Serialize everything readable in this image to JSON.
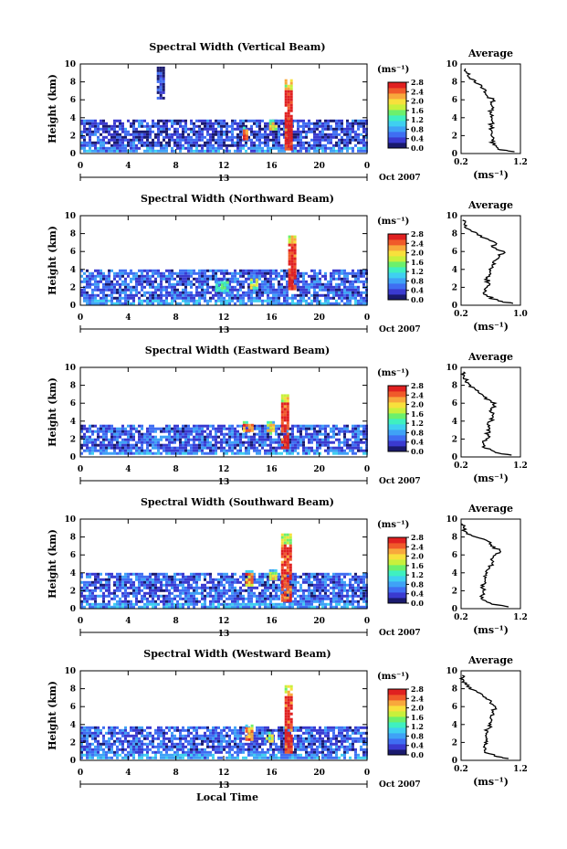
{
  "common": {
    "height_label": "Height (km)",
    "date_label": "Oct 2007",
    "local_time_label": "Local Time",
    "unit_label": "(ms⁻¹)",
    "average_title": "Average",
    "colorscale_ticks": [
      "0.0",
      "0.4",
      "0.8",
      "1.2",
      "1.6",
      "2.0",
      "2.4",
      "2.8"
    ],
    "colormap": [
      "#1a1a6e",
      "#3a3ad0",
      "#3f6ef2",
      "#3fa2f6",
      "#3fd0f0",
      "#3ff0c0",
      "#6cf06c",
      "#c8f03c",
      "#f8e03c",
      "#f8a83c",
      "#f05a2a",
      "#e02020"
    ]
  },
  "chart_data": [
    {
      "type": "heatmap",
      "title": "Spectral Width (Vertical Beam)",
      "ylabel": "Height (km)",
      "x_ticks": [
        "0",
        "4",
        "8",
        "12",
        "16",
        "20",
        "0"
      ],
      "y_ticks": [
        "0",
        "2",
        "4",
        "6",
        "8",
        "10"
      ],
      "xlim": [
        0,
        24
      ],
      "ylim": [
        0,
        10
      ],
      "date_tick": "13",
      "colorbar": {
        "label": "(ms⁻¹)",
        "ticks": [
          "0.0",
          "0.4",
          "0.8",
          "1.2",
          "1.6",
          "2.0",
          "2.4",
          "2.8"
        ],
        "range": [
          0,
          2.8
        ]
      },
      "features": [
        {
          "x": [
            0,
            24
          ],
          "y": [
            0.4,
            3.8
          ],
          "value": 0.4
        },
        {
          "x": [
            6.4,
            7.0
          ],
          "y": [
            6.2,
            9.7
          ],
          "value": 0.3
        },
        {
          "x": [
            13.6,
            14.0
          ],
          "y": [
            1.6,
            3.0
          ],
          "value": 2.5
        },
        {
          "x": [
            15.8,
            16.3
          ],
          "y": [
            2.6,
            3.8
          ],
          "value": 1.8
        },
        {
          "x": [
            17.1,
            17.6
          ],
          "y": [
            0.6,
            8.3
          ],
          "value": 2.7
        }
      ],
      "profile": {
        "title": "Average",
        "xlabel": "(ms⁻¹)",
        "x_ticks": [
          "0.2",
          "1.2"
        ],
        "xlim": [
          0.2,
          1.2
        ],
        "y_ticks": [
          "0",
          "2",
          "4",
          "6",
          "8",
          "10"
        ],
        "height": [
          0.2,
          0.5,
          1.0,
          1.5,
          2.0,
          2.5,
          3.0,
          3.5,
          4.0,
          4.5,
          5.0,
          5.5,
          6.0,
          6.5,
          7.0,
          7.5,
          8.0,
          8.5,
          9.0,
          9.5
        ],
        "values": [
          1.1,
          0.82,
          0.74,
          0.72,
          0.71,
          0.72,
          0.7,
          0.73,
          0.72,
          0.69,
          0.72,
          0.7,
          0.74,
          0.63,
          0.62,
          0.55,
          0.42,
          0.34,
          0.29,
          0.27
        ]
      }
    },
    {
      "type": "heatmap",
      "title": "Spectral Width (Northward Beam)",
      "ylabel": "Height (km)",
      "x_ticks": [
        "0",
        "4",
        "8",
        "12",
        "16",
        "20",
        "0"
      ],
      "y_ticks": [
        "0",
        "2",
        "4",
        "6",
        "8",
        "10"
      ],
      "xlim": [
        0,
        24
      ],
      "ylim": [
        0,
        10
      ],
      "date_tick": "13",
      "colorbar": {
        "label": "(ms⁻¹)",
        "ticks": [
          "0.0",
          "0.4",
          "0.8",
          "1.2",
          "1.6",
          "2.0",
          "2.4",
          "2.8"
        ],
        "range": [
          0,
          2.8
        ]
      },
      "features": [
        {
          "x": [
            0,
            24
          ],
          "y": [
            0.3,
            4.0
          ],
          "value": 0.5
        },
        {
          "x": [
            11.3,
            12.4
          ],
          "y": [
            1.5,
            3.0
          ],
          "value": 1.2
        },
        {
          "x": [
            14.2,
            14.8
          ],
          "y": [
            1.8,
            3.3
          ],
          "value": 1.6
        },
        {
          "x": [
            17.4,
            17.9
          ],
          "y": [
            1.8,
            7.8
          ],
          "value": 2.7
        }
      ],
      "profile": {
        "title": "Average",
        "xlabel": "(ms⁻¹)",
        "x_ticks": [
          "0.2",
          "1.0"
        ],
        "xlim": [
          0.2,
          1.0
        ],
        "y_ticks": [
          "0",
          "2",
          "4",
          "6",
          "8",
          "10"
        ],
        "height": [
          0.2,
          0.5,
          1.0,
          1.5,
          2.0,
          2.5,
          3.0,
          3.5,
          4.0,
          4.5,
          5.0,
          5.5,
          6.0,
          6.5,
          7.0,
          7.5,
          8.0,
          8.5,
          9.0,
          9.5
        ],
        "values": [
          0.9,
          0.7,
          0.55,
          0.52,
          0.55,
          0.57,
          0.55,
          0.6,
          0.58,
          0.62,
          0.66,
          0.72,
          0.78,
          0.62,
          0.66,
          0.52,
          0.42,
          0.3,
          0.24,
          0.22
        ]
      }
    },
    {
      "type": "heatmap",
      "title": "Spectral Width (Eastward Beam)",
      "ylabel": "Height (km)",
      "x_ticks": [
        "0",
        "4",
        "8",
        "12",
        "16",
        "20",
        "0"
      ],
      "y_ticks": [
        "0",
        "2",
        "4",
        "6",
        "8",
        "10"
      ],
      "xlim": [
        0,
        24
      ],
      "ylim": [
        0,
        10
      ],
      "date_tick": "13",
      "colorbar": {
        "label": "(ms⁻¹)",
        "ticks": [
          "0.0",
          "0.4",
          "0.8",
          "1.2",
          "1.6",
          "2.0",
          "2.4",
          "2.8"
        ],
        "range": [
          0,
          2.8
        ]
      },
      "features": [
        {
          "x": [
            0,
            24
          ],
          "y": [
            0.3,
            3.6
          ],
          "value": 0.5
        },
        {
          "x": [
            13.6,
            14.3
          ],
          "y": [
            2.8,
            4.0
          ],
          "value": 2.3
        },
        {
          "x": [
            15.6,
            16.2
          ],
          "y": [
            2.6,
            4.0
          ],
          "value": 2.0
        },
        {
          "x": [
            16.8,
            17.4
          ],
          "y": [
            1.0,
            7.0
          ],
          "value": 2.6
        }
      ],
      "profile": {
        "title": "Average",
        "xlabel": "(ms⁻¹)",
        "x_ticks": [
          "0.2",
          "1.2"
        ],
        "xlim": [
          0.2,
          1.2
        ],
        "y_ticks": [
          "0",
          "2",
          "4",
          "6",
          "8",
          "10"
        ],
        "height": [
          0.2,
          0.5,
          1.0,
          1.5,
          2.0,
          2.5,
          3.0,
          3.5,
          4.0,
          4.5,
          5.0,
          5.5,
          6.0,
          6.5,
          7.0,
          7.5,
          8.0,
          8.5,
          9.0,
          9.5
        ],
        "values": [
          1.05,
          0.78,
          0.6,
          0.58,
          0.62,
          0.66,
          0.64,
          0.68,
          0.7,
          0.74,
          0.7,
          0.72,
          0.78,
          0.6,
          0.55,
          0.44,
          0.36,
          0.28,
          0.25,
          0.24
        ]
      }
    },
    {
      "type": "heatmap",
      "title": "Spectral Width (Southward Beam)",
      "ylabel": "Height (km)",
      "x_ticks": [
        "0",
        "4",
        "8",
        "12",
        "16",
        "20",
        "0"
      ],
      "y_ticks": [
        "0",
        "2",
        "4",
        "6",
        "8",
        "10"
      ],
      "xlim": [
        0,
        24
      ],
      "ylim": [
        0,
        10
      ],
      "date_tick": "13",
      "colorbar": {
        "label": "(ms⁻¹)",
        "ticks": [
          "0.0",
          "0.4",
          "0.8",
          "1.2",
          "1.6",
          "2.0",
          "2.4",
          "2.8"
        ],
        "range": [
          0,
          2.8
        ]
      },
      "features": [
        {
          "x": [
            0,
            24
          ],
          "y": [
            0.3,
            4.0
          ],
          "value": 0.5
        },
        {
          "x": [
            13.8,
            14.3
          ],
          "y": [
            2.6,
            4.3
          ],
          "value": 2.2
        },
        {
          "x": [
            15.8,
            16.4
          ],
          "y": [
            3.2,
            4.4
          ],
          "value": 1.8
        },
        {
          "x": [
            16.8,
            17.5
          ],
          "y": [
            1.0,
            8.4
          ],
          "value": 2.6
        }
      ],
      "profile": {
        "title": "Average",
        "xlabel": "(ms⁻¹)",
        "x_ticks": [
          "0.2",
          "1.2"
        ],
        "xlim": [
          0.2,
          1.2
        ],
        "y_ticks": [
          "0",
          "2",
          "4",
          "6",
          "8",
          "10"
        ],
        "height": [
          0.2,
          0.5,
          1.0,
          1.5,
          2.0,
          2.5,
          3.0,
          3.5,
          4.0,
          4.5,
          5.0,
          5.5,
          6.0,
          6.5,
          7.0,
          7.5,
          8.0,
          8.5,
          9.0,
          9.5
        ],
        "values": [
          1.0,
          0.72,
          0.56,
          0.55,
          0.57,
          0.58,
          0.6,
          0.62,
          0.64,
          0.68,
          0.72,
          0.7,
          0.78,
          0.85,
          0.7,
          0.66,
          0.45,
          0.3,
          0.24,
          0.22
        ]
      }
    },
    {
      "type": "heatmap",
      "title": "Spectral Width (Westward Beam)",
      "ylabel": "Height (km)",
      "x_ticks": [
        "0",
        "4",
        "8",
        "12",
        "16",
        "20",
        "0"
      ],
      "y_ticks": [
        "0",
        "2",
        "4",
        "6",
        "8",
        "10"
      ],
      "xlim": [
        0,
        24
      ],
      "ylim": [
        0,
        10
      ],
      "date_tick": "13",
      "xlabel": "Local Time",
      "colorbar": {
        "label": "(ms⁻¹)",
        "ticks": [
          "0.0",
          "0.4",
          "0.8",
          "1.2",
          "1.6",
          "2.0",
          "2.4",
          "2.8"
        ],
        "range": [
          0,
          2.8
        ]
      },
      "features": [
        {
          "x": [
            0,
            24
          ],
          "y": [
            0.3,
            3.8
          ],
          "value": 0.5
        },
        {
          "x": [
            13.8,
            14.3
          ],
          "y": [
            2.4,
            4.0
          ],
          "value": 2.3
        },
        {
          "x": [
            15.5,
            16.0
          ],
          "y": [
            2.0,
            3.2
          ],
          "value": 1.6
        },
        {
          "x": [
            17.1,
            17.6
          ],
          "y": [
            0.8,
            8.4
          ],
          "value": 2.7
        }
      ],
      "profile": {
        "title": "Average",
        "xlabel": "(ms⁻¹)",
        "x_ticks": [
          "0.2",
          "1.2"
        ],
        "xlim": [
          0.2,
          1.2
        ],
        "y_ticks": [
          "0",
          "2",
          "4",
          "6",
          "8",
          "10"
        ],
        "height": [
          0.2,
          0.5,
          1.0,
          1.5,
          2.0,
          2.5,
          3.0,
          3.5,
          4.0,
          4.5,
          5.0,
          5.5,
          6.0,
          6.5,
          7.0,
          7.5,
          8.0,
          8.5,
          9.0,
          9.5
        ],
        "values": [
          1.0,
          0.76,
          0.6,
          0.58,
          0.6,
          0.62,
          0.62,
          0.65,
          0.7,
          0.72,
          0.7,
          0.74,
          0.78,
          0.7,
          0.62,
          0.52,
          0.34,
          0.27,
          0.24,
          0.22
        ]
      }
    }
  ]
}
